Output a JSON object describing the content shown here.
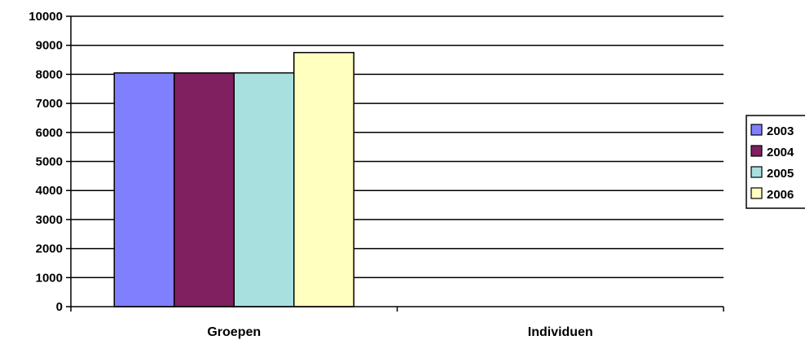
{
  "chart_data": {
    "type": "bar",
    "title": "",
    "xlabel": "",
    "ylabel": "",
    "categories": [
      "Groepen",
      "Individuen"
    ],
    "series": [
      {
        "name": "2003",
        "values": [
          8050,
          null
        ],
        "color": "#8080ff"
      },
      {
        "name": "2004",
        "values": [
          8050,
          null
        ],
        "color": "#802060"
      },
      {
        "name": "2005",
        "values": [
          8050,
          null
        ],
        "color": "#a8e0e0"
      },
      {
        "name": "2006",
        "values": [
          8750,
          null
        ],
        "color": "#ffffc0"
      }
    ],
    "ylim": [
      0,
      10000
    ],
    "yticks": [
      0,
      1000,
      2000,
      3000,
      4000,
      5000,
      6000,
      7000,
      8000,
      9000,
      10000
    ],
    "ytick_labels": [
      "0",
      "1000",
      "2000",
      "3000",
      "4000",
      "5000",
      "6000",
      "7000",
      "8000",
      "9000",
      "10000"
    ],
    "grid": true,
    "legend": {
      "placement": "right",
      "entries": [
        "2003",
        "2004",
        "2005",
        "2006"
      ]
    }
  }
}
